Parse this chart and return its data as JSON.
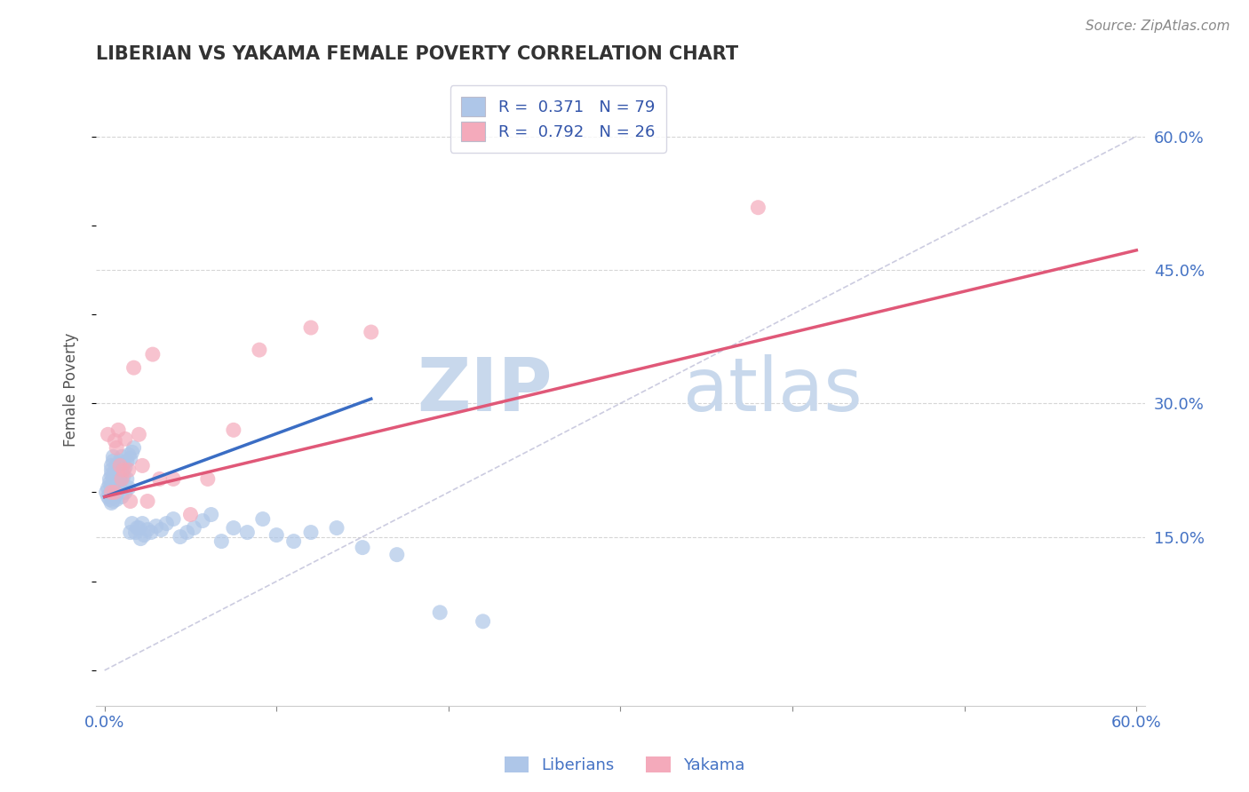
{
  "title": "LIBERIAN VS YAKAMA FEMALE POVERTY CORRELATION CHART",
  "source": "Source: ZipAtlas.com",
  "ylabel": "Female Poverty",
  "xlim": [
    -0.005,
    0.605
  ],
  "ylim": [
    -0.04,
    0.67
  ],
  "xtick_positions": [
    0.0,
    0.1,
    0.2,
    0.3,
    0.4,
    0.5,
    0.6
  ],
  "xticklabels": [
    "0.0%",
    "",
    "",
    "",
    "",
    "",
    "60.0%"
  ],
  "yticks_right": [
    0.15,
    0.3,
    0.45,
    0.6
  ],
  "ytick_right_labels": [
    "15.0%",
    "30.0%",
    "45.0%",
    "60.0%"
  ],
  "R_liberian": 0.371,
  "N_liberian": 79,
  "R_yakama": 0.792,
  "N_yakama": 26,
  "color_liberian": "#AEC6E8",
  "color_yakama": "#F4AABB",
  "line_color_liberian": "#3A6DC4",
  "line_color_yakama": "#E05878",
  "watermark_zip": "ZIP",
  "watermark_atlas": "atlas",
  "watermark_color": "#C8D8EC",
  "grid_color": "#CCCCCC",
  "diag_color": "#AAAACC",
  "liberian_x": [
    0.001,
    0.002,
    0.002,
    0.003,
    0.003,
    0.003,
    0.003,
    0.004,
    0.004,
    0.004,
    0.004,
    0.004,
    0.005,
    0.005,
    0.005,
    0.005,
    0.005,
    0.005,
    0.006,
    0.006,
    0.006,
    0.006,
    0.006,
    0.007,
    0.007,
    0.007,
    0.007,
    0.008,
    0.008,
    0.008,
    0.008,
    0.009,
    0.009,
    0.009,
    0.01,
    0.01,
    0.01,
    0.011,
    0.011,
    0.012,
    0.012,
    0.013,
    0.013,
    0.014,
    0.014,
    0.015,
    0.015,
    0.016,
    0.016,
    0.017,
    0.018,
    0.019,
    0.02,
    0.021,
    0.022,
    0.023,
    0.025,
    0.027,
    0.03,
    0.033,
    0.036,
    0.04,
    0.044,
    0.048,
    0.052,
    0.057,
    0.062,
    0.068,
    0.075,
    0.083,
    0.092,
    0.1,
    0.11,
    0.12,
    0.135,
    0.15,
    0.17,
    0.195,
    0.22
  ],
  "liberian_y": [
    0.2,
    0.195,
    0.205,
    0.21,
    0.198,
    0.215,
    0.192,
    0.22,
    0.208,
    0.225,
    0.188,
    0.23,
    0.218,
    0.195,
    0.235,
    0.205,
    0.19,
    0.24,
    0.222,
    0.2,
    0.215,
    0.195,
    0.21,
    0.225,
    0.198,
    0.23,
    0.192,
    0.228,
    0.21,
    0.218,
    0.202,
    0.235,
    0.205,
    0.215,
    0.24,
    0.195,
    0.225,
    0.232,
    0.218,
    0.228,
    0.2,
    0.235,
    0.215,
    0.242,
    0.205,
    0.238,
    0.155,
    0.245,
    0.165,
    0.25,
    0.155,
    0.16,
    0.16,
    0.148,
    0.165,
    0.152,
    0.158,
    0.155,
    0.162,
    0.158,
    0.165,
    0.17,
    0.15,
    0.155,
    0.16,
    0.168,
    0.175,
    0.145,
    0.16,
    0.155,
    0.17,
    0.152,
    0.145,
    0.155,
    0.16,
    0.138,
    0.13,
    0.065,
    0.055
  ],
  "yakama_x": [
    0.002,
    0.004,
    0.006,
    0.006,
    0.007,
    0.008,
    0.009,
    0.01,
    0.011,
    0.012,
    0.014,
    0.015,
    0.017,
    0.02,
    0.022,
    0.025,
    0.028,
    0.032,
    0.04,
    0.05,
    0.06,
    0.075,
    0.09,
    0.12,
    0.155,
    0.38
  ],
  "yakama_y": [
    0.265,
    0.2,
    0.2,
    0.258,
    0.25,
    0.27,
    0.23,
    0.215,
    0.225,
    0.26,
    0.225,
    0.19,
    0.34,
    0.265,
    0.23,
    0.19,
    0.355,
    0.215,
    0.215,
    0.175,
    0.215,
    0.27,
    0.36,
    0.385,
    0.38,
    0.52
  ],
  "blue_line_x0": 0.0,
  "blue_line_y0": 0.195,
  "blue_line_x1": 0.155,
  "blue_line_y1": 0.305,
  "pink_line_x0": 0.0,
  "pink_line_y0": 0.195,
  "pink_line_x1": 0.6,
  "pink_line_y1": 0.472
}
